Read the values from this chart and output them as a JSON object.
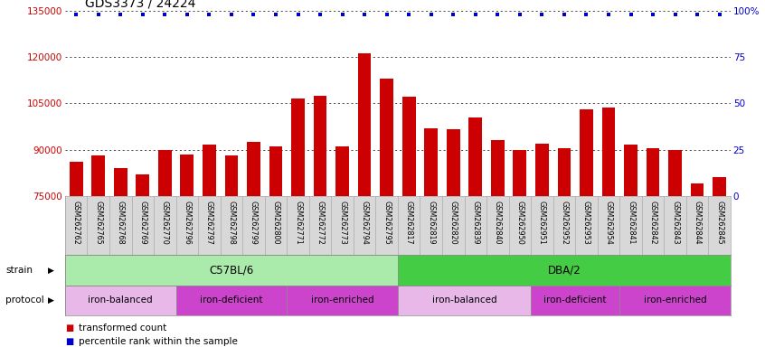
{
  "title": "GDS3373 / 24224",
  "samples": [
    "GSM262762",
    "GSM262765",
    "GSM262768",
    "GSM262769",
    "GSM262770",
    "GSM262796",
    "GSM262797",
    "GSM262798",
    "GSM262799",
    "GSM262800",
    "GSM262771",
    "GSM262772",
    "GSM262773",
    "GSM262794",
    "GSM262795",
    "GSM262817",
    "GSM262819",
    "GSM262820",
    "GSM262839",
    "GSM262840",
    "GSM262950",
    "GSM262951",
    "GSM262952",
    "GSM262953",
    "GSM262954",
    "GSM262841",
    "GSM262842",
    "GSM262843",
    "GSM262844",
    "GSM262845"
  ],
  "values": [
    86000,
    88000,
    84000,
    82000,
    90000,
    88500,
    91500,
    88000,
    92500,
    91000,
    106500,
    107500,
    91000,
    121000,
    113000,
    107000,
    97000,
    96500,
    100500,
    93000,
    90000,
    92000,
    90500,
    103000,
    103500,
    91500,
    90500,
    90000,
    79000,
    81000
  ],
  "bar_color": "#cc0000",
  "dot_color": "#0000cc",
  "ymin": 75000,
  "ymax": 135000,
  "yticks": [
    75000,
    90000,
    105000,
    120000,
    135000
  ],
  "right_yticks": [
    0,
    25,
    50,
    75,
    100
  ],
  "right_yticklabels": [
    "0",
    "25",
    "50",
    "75",
    "100%"
  ],
  "strain_groups": [
    {
      "label": "C57BL/6",
      "start": 0,
      "end": 15,
      "color": "#aaeaaa"
    },
    {
      "label": "DBA/2",
      "start": 15,
      "end": 30,
      "color": "#44cc44"
    }
  ],
  "protocol_groups": [
    {
      "label": "iron-balanced",
      "start": 0,
      "end": 5,
      "color": "#e8b8e8"
    },
    {
      "label": "iron-deficient",
      "start": 5,
      "end": 10,
      "color": "#cc44cc"
    },
    {
      "label": "iron-enriched",
      "start": 10,
      "end": 15,
      "color": "#cc44cc"
    },
    {
      "label": "iron-balanced",
      "start": 15,
      "end": 21,
      "color": "#e8b8e8"
    },
    {
      "label": "iron-deficient",
      "start": 21,
      "end": 25,
      "color": "#cc44cc"
    },
    {
      "label": "iron-enriched",
      "start": 25,
      "end": 30,
      "color": "#cc44cc"
    }
  ],
  "bg_color": "#ffffff",
  "left_tick_color": "#cc0000",
  "right_tick_color": "#0000cc",
  "xtick_bg": "#d8d8d8"
}
